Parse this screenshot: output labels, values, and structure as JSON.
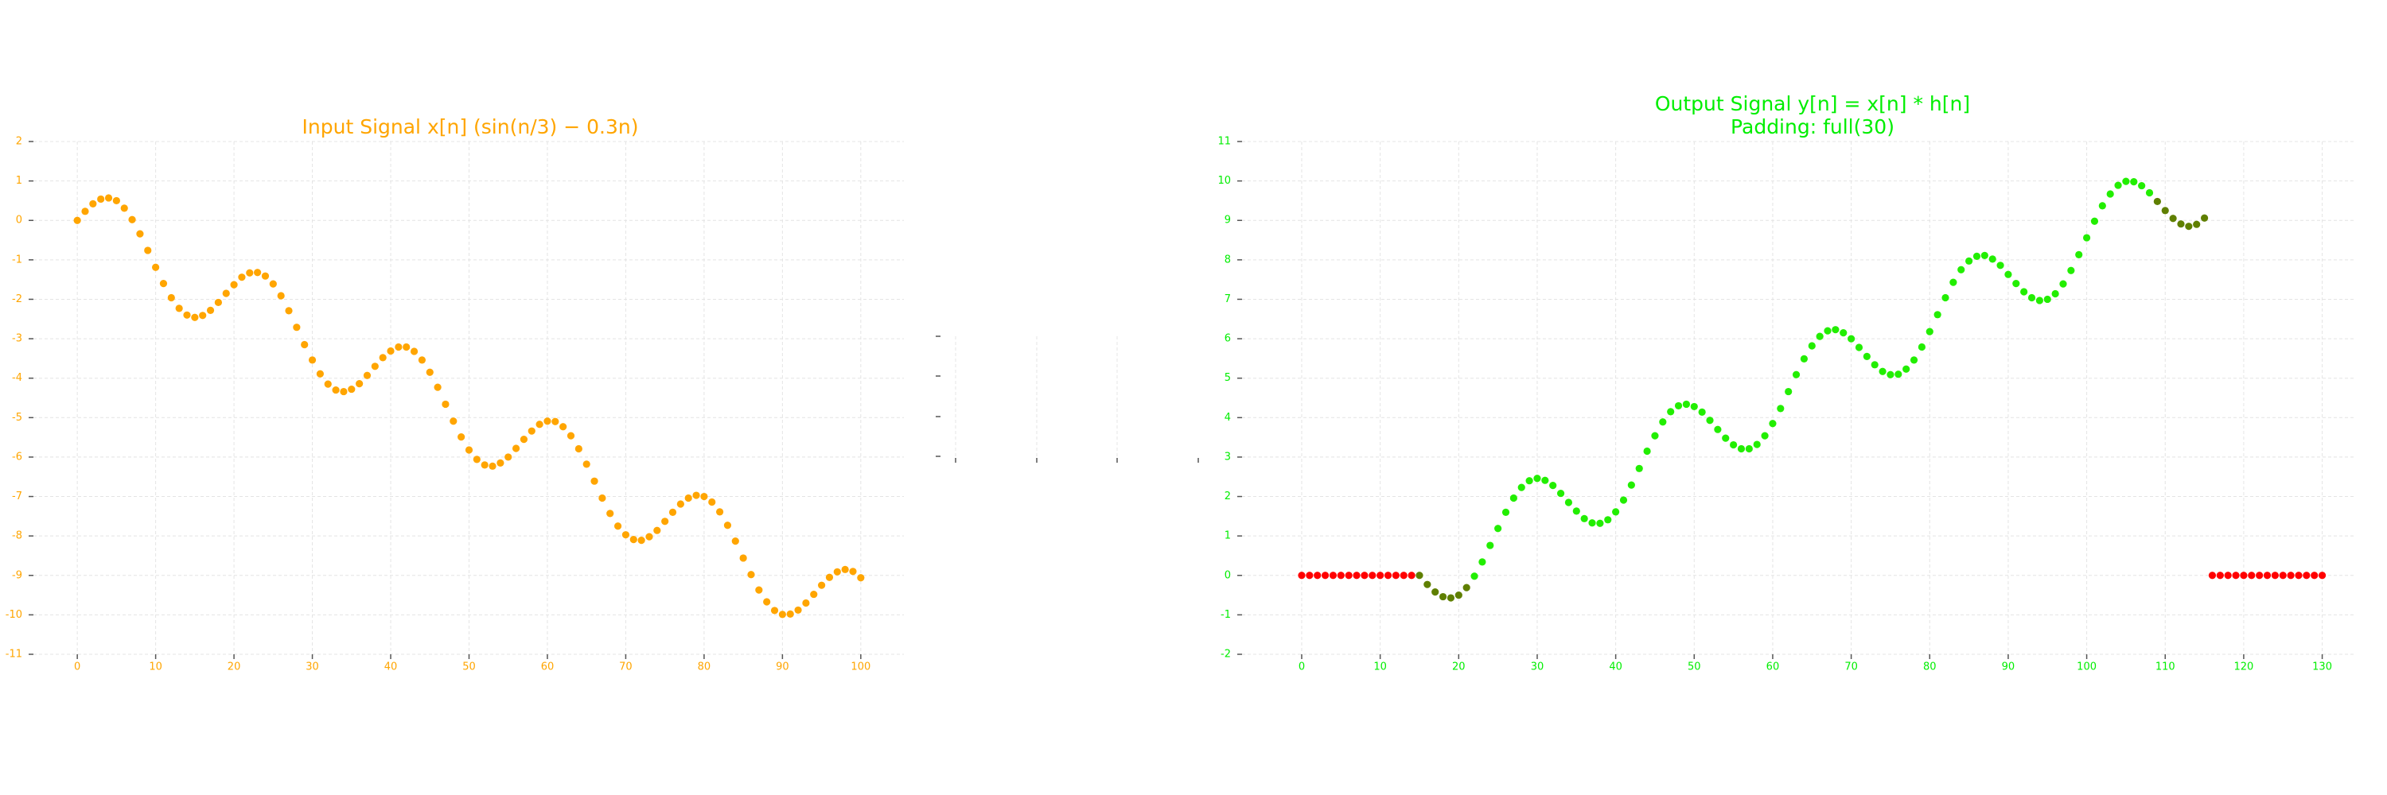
{
  "chart_data": [
    {
      "type": "scatter",
      "title": "Input Signal x[n] (sin(n/3) − 0.3n)",
      "text_color": "#ffa500",
      "grid": true,
      "xlim": [
        -5.6,
        105.5
      ],
      "ylim": [
        -11,
        2
      ],
      "xticks": [
        0,
        10,
        20,
        30,
        40,
        50,
        60,
        70,
        80,
        90,
        100
      ],
      "yticks": [
        -11,
        -10,
        -9,
        -8,
        -7,
        -6,
        -5,
        -4,
        -3,
        -2,
        -1,
        0,
        1,
        2
      ],
      "series": [
        {
          "color": "#ffa500",
          "x": [
            0,
            1,
            2,
            3,
            4,
            5,
            6,
            7,
            8,
            9,
            10,
            11,
            12,
            13,
            14,
            15,
            16,
            17,
            18,
            19,
            20,
            21,
            22,
            23,
            24,
            25,
            26,
            27,
            28,
            29,
            30,
            31,
            32,
            33,
            34,
            35,
            36,
            37,
            38,
            39,
            40,
            41,
            42,
            43,
            44,
            45,
            46,
            47,
            48,
            49,
            50,
            51,
            52,
            53,
            54,
            55,
            56,
            57,
            58,
            59,
            60,
            61,
            62,
            63,
            64,
            65,
            66,
            67,
            68,
            69,
            70,
            71,
            72,
            73,
            74,
            75,
            76,
            77,
            78,
            79,
            80,
            81,
            82,
            83,
            84,
            85,
            86,
            87,
            88,
            89,
            90,
            91,
            92,
            93,
            94,
            95,
            96,
            97,
            98,
            99,
            100
          ],
          "values": [
            0,
            0.23,
            0.42,
            0.54,
            0.57,
            0.5,
            0.31,
            0.02,
            -0.34,
            -0.76,
            -1.19,
            -1.6,
            -1.96,
            -2.23,
            -2.4,
            -2.46,
            -2.41,
            -2.28,
            -2.08,
            -1.85,
            -1.63,
            -1.44,
            -1.33,
            -1.32,
            -1.41,
            -1.61,
            -1.91,
            -2.29,
            -2.71,
            -3.15,
            -3.54,
            -3.89,
            -4.15,
            -4.3,
            -4.34,
            -4.28,
            -4.14,
            -3.93,
            -3.7,
            -3.48,
            -3.31,
            -3.21,
            -3.21,
            -3.32,
            -3.54,
            -3.85,
            -4.23,
            -4.66,
            -5.09,
            -5.49,
            -5.82,
            -6.06,
            -6.2,
            -6.23,
            -6.15,
            -6,
            -5.78,
            -5.55,
            -5.34,
            -5.17,
            -5.09,
            -5.1,
            -5.23,
            -5.46,
            -5.79,
            -6.18,
            -6.61,
            -7.04,
            -7.43,
            -7.75,
            -7.97,
            -8.09,
            -8.11,
            -8.02,
            -7.86,
            -7.63,
            -7.4,
            -7.19,
            -7.04,
            -6.97,
            -7,
            -7.14,
            -7.39,
            -7.73,
            -8.13,
            -8.56,
            -8.98,
            -9.37,
            -9.67,
            -9.89,
            -9.99,
            -9.98,
            -9.88,
            -9.7,
            -9.48,
            -9.25,
            -9.05,
            -8.91,
            -8.85,
            -8.9,
            -9.06
          ]
        }
      ]
    },
    {
      "type": "scatter",
      "title": "Output Signal y[n] = x[n] * h[n]",
      "subtitle": "Padding: full(30)",
      "text_color": "#00ee00",
      "grid": true,
      "xlim": [
        -7.6,
        134.3
      ],
      "ylim": [
        -2,
        11
      ],
      "xticks": [
        0,
        10,
        20,
        30,
        40,
        50,
        60,
        70,
        80,
        90,
        100,
        110,
        120,
        130
      ],
      "yticks": [
        -2,
        -1,
        0,
        1,
        2,
        3,
        4,
        5,
        6,
        7,
        8,
        9,
        10,
        11
      ],
      "series": [
        {
          "color": "#ff0000",
          "x": [
            0,
            1,
            2,
            3,
            4,
            5,
            6,
            7,
            8,
            9,
            10,
            11,
            12,
            13,
            14,
            116,
            117,
            118,
            119,
            120,
            121,
            122,
            123,
            124,
            125,
            126,
            127,
            128,
            129,
            130
          ],
          "values": [
            0,
            0,
            0,
            0,
            0,
            0,
            0,
            0,
            0,
            0,
            0,
            0,
            0,
            0,
            0,
            0,
            0,
            0,
            0,
            0,
            0,
            0,
            0,
            0,
            0,
            0,
            0,
            0,
            0,
            0
          ]
        },
        {
          "color": "#5f7f00",
          "x": [
            15,
            16,
            17,
            18,
            19,
            20,
            21,
            109,
            110,
            111,
            112,
            113,
            114,
            115
          ],
          "values": [
            0,
            -0.23,
            -0.42,
            -0.54,
            -0.57,
            -0.5,
            -0.31,
            9.48,
            9.25,
            9.05,
            8.91,
            8.85,
            8.9,
            9.06
          ]
        },
        {
          "color": "#22ee00",
          "x": [
            22,
            23,
            24,
            25,
            26,
            27,
            28,
            29,
            30,
            31,
            32,
            33,
            34,
            35,
            36,
            37,
            38,
            39,
            40,
            41,
            42,
            43,
            44,
            45,
            46,
            47,
            48,
            49,
            50,
            51,
            52,
            53,
            54,
            55,
            56,
            57,
            58,
            59,
            60,
            61,
            62,
            63,
            64,
            65,
            66,
            67,
            68,
            69,
            70,
            71,
            72,
            73,
            74,
            75,
            76,
            77,
            78,
            79,
            80,
            81,
            82,
            83,
            84,
            85,
            86,
            87,
            88,
            89,
            90,
            91,
            92,
            93,
            94,
            95,
            96,
            97,
            98,
            99,
            100,
            101,
            102,
            103,
            104,
            105,
            106,
            107,
            108
          ],
          "values": [
            -0.02,
            0.34,
            0.76,
            1.19,
            1.6,
            1.96,
            2.23,
            2.4,
            2.46,
            2.41,
            2.28,
            2.08,
            1.85,
            1.63,
            1.44,
            1.33,
            1.32,
            1.41,
            1.61,
            1.91,
            2.29,
            2.71,
            3.15,
            3.54,
            3.89,
            4.15,
            4.3,
            4.34,
            4.28,
            4.14,
            3.93,
            3.7,
            3.48,
            3.31,
            3.21,
            3.21,
            3.32,
            3.54,
            3.85,
            4.23,
            4.66,
            5.09,
            5.49,
            5.82,
            6.06,
            6.2,
            6.23,
            6.15,
            6,
            5.78,
            5.55,
            5.34,
            5.17,
            5.09,
            5.1,
            5.23,
            5.46,
            5.79,
            6.18,
            6.61,
            7.04,
            7.43,
            7.75,
            7.97,
            8.09,
            8.11,
            8.02,
            7.86,
            7.63,
            7.4,
            7.19,
            7.04,
            6.97,
            7,
            7.14,
            7.39,
            7.73,
            8.13,
            8.56,
            8.98,
            9.37,
            9.67,
            9.89,
            9.99,
            9.98,
            9.88,
            9.7
          ]
        }
      ]
    }
  ]
}
